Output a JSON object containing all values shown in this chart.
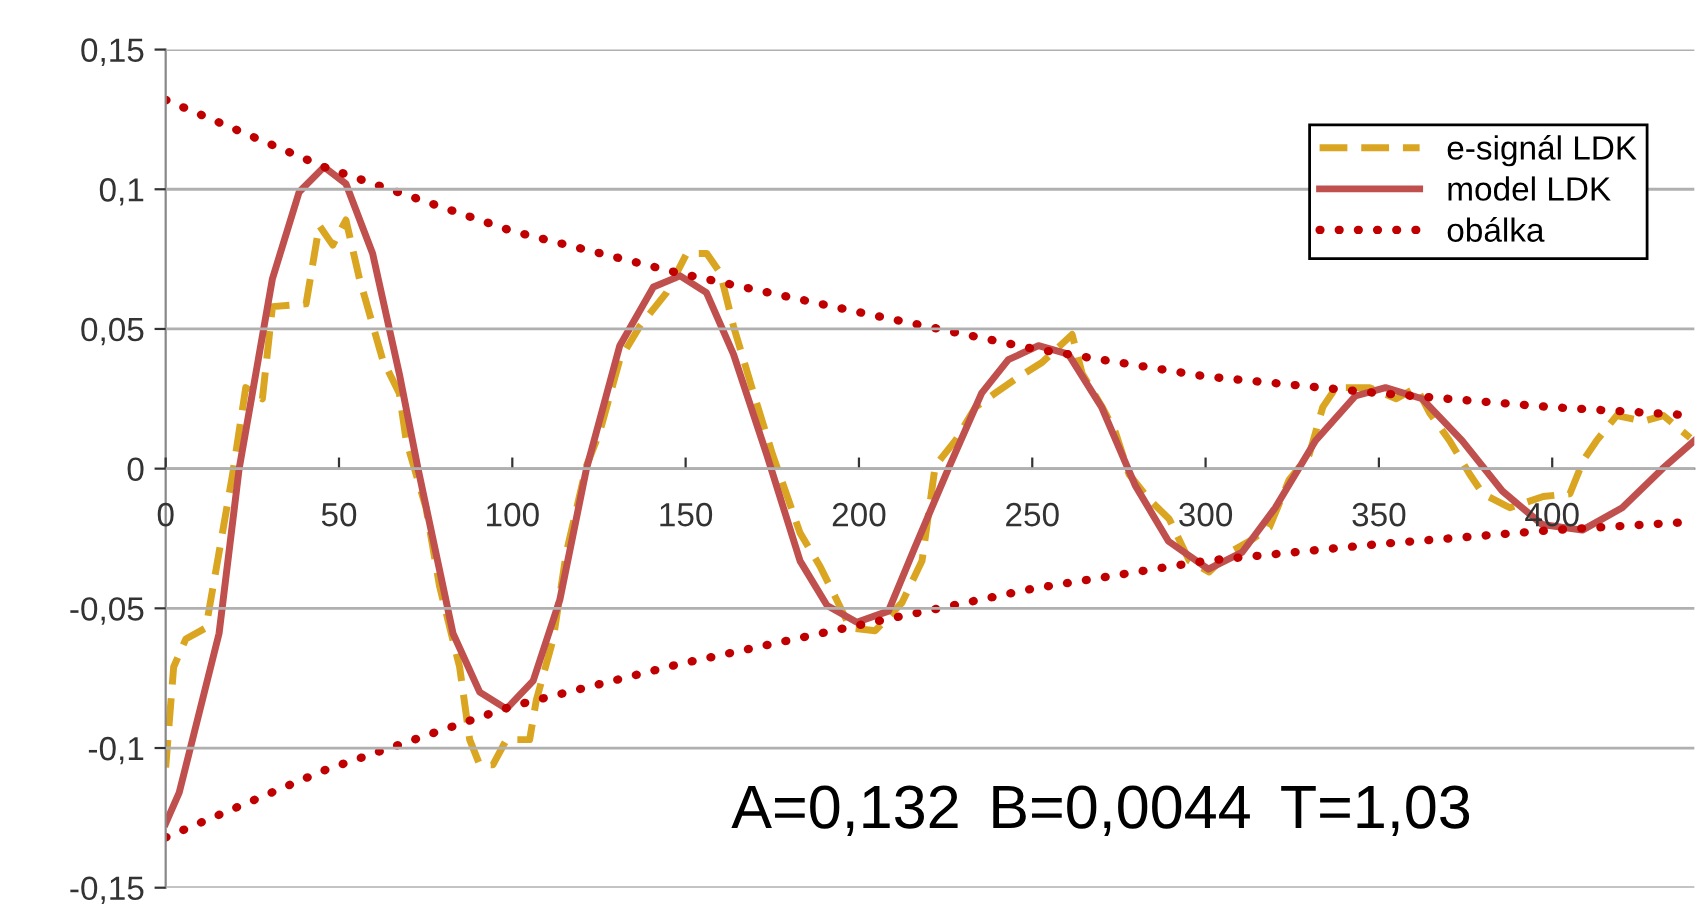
{
  "chart_data": {
    "type": "line",
    "xlim": [
      0,
      441
    ],
    "xticks": [
      0,
      50,
      100,
      150,
      200,
      250,
      300,
      350,
      400
    ],
    "ylim": [
      -0.15,
      0.15
    ],
    "yticks": [
      {
        "value": -0.15,
        "label": "-0,15"
      },
      {
        "value": -0.1,
        "label": "-0,1"
      },
      {
        "value": -0.05,
        "label": "-0,05"
      },
      {
        "value": 0,
        "label": "0"
      },
      {
        "value": 0.05,
        "label": "0,05"
      },
      {
        "value": 0.1,
        "label": "0,1"
      },
      {
        "value": 0.15,
        "label": "0,15"
      }
    ],
    "grid": "y",
    "legend": "top right",
    "marker": "none",
    "annotations": [
      "A=0,132",
      "B=0,0044",
      "T=1,03"
    ],
    "series": [
      {
        "name": "e-signál LDK",
        "color": "#daa520",
        "line_style": "dashed",
        "x": [
          0,
          2.3,
          5.8,
          11.6,
          15.4,
          19.3,
          23.1,
          27.9,
          30.8,
          40.5,
          44.3,
          48.2,
          52,
          55.9,
          62.6,
          67.4,
          69.4,
          75.1,
          79,
          84.8,
          87.7,
          90.6,
          94.4,
          98.3,
          105,
          106.9,
          111.8,
          115.6,
          121.4,
          125.2,
          131,
          136.8,
          144.5,
          150.3,
          156.1,
          160,
          163.8,
          169.6,
          175.1,
          183,
          188.8,
          193.6,
          197.5,
          204.7,
          212.4,
          218.2,
          222,
          227.8,
          233.6,
          239.3,
          245.1,
          252.8,
          261.5,
          264.4,
          270.2,
          274,
          277.9,
          283.7,
          289.5,
          295.3,
          301,
          306.8,
          312.6,
          318.4,
          324.1,
          329.9,
          333.8,
          337.6,
          347.3,
          355,
          360.8,
          364.6,
          370.4,
          376.2,
          380,
          387.8,
          397.4,
          405.1,
          409,
          412.8,
          418.6,
          426.3,
          432.1,
          439.8
        ],
        "values": [
          -0.107,
          -0.071,
          -0.061,
          -0.057,
          -0.03,
          -0.002,
          0.029,
          0.025,
          0.058,
          0.059,
          0.087,
          0.08,
          0.089,
          0.068,
          0.039,
          0.027,
          0.01,
          -0.014,
          -0.042,
          -0.071,
          -0.097,
          -0.106,
          -0.106,
          -0.097,
          -0.097,
          -0.083,
          -0.061,
          -0.03,
          0.001,
          0.013,
          0.039,
          0.051,
          0.063,
          0.077,
          0.077,
          0.07,
          0.051,
          0.027,
          0.005,
          -0.023,
          -0.035,
          -0.047,
          -0.057,
          -0.058,
          -0.048,
          -0.033,
          0.001,
          0.01,
          0.022,
          0.027,
          0.032,
          0.038,
          0.048,
          0.034,
          0.022,
          0.013,
          -0.002,
          -0.011,
          -0.018,
          -0.033,
          -0.037,
          -0.03,
          -0.026,
          -0.021,
          -0.004,
          0.005,
          0.022,
          0.029,
          0.029,
          0.025,
          0.029,
          0.02,
          0.01,
          -0.002,
          -0.009,
          -0.014,
          -0.01,
          -0.009,
          0.003,
          0.01,
          0.019,
          0.017,
          0.019,
          0.011
        ]
      },
      {
        "name": "model LDK",
        "color": "#c0504d",
        "line_style": "solid",
        "x": [
          0,
          3.9,
          15.4,
          21.2,
          30.8,
          38.5,
          45.7,
          52,
          59.7,
          67.4,
          72.8,
          82.9,
          90.6,
          98.3,
          106,
          113.7,
          121.4,
          131,
          140.7,
          148.4,
          156,
          163.8,
          173.4,
          183,
          190.8,
          199.4,
          208.5,
          216.2,
          225.8,
          235.4,
          243.1,
          251.8,
          260.4,
          270,
          279.7,
          289.3,
          300.8,
          310.5,
          320.1,
          331.7,
          343.2,
          351.9,
          362.5,
          374,
          385.6,
          397.1,
          408.7,
          420.2,
          431.8,
          441
        ],
        "values": [
          -0.127,
          -0.116,
          -0.059,
          0,
          0.068,
          0.099,
          0.108,
          0.102,
          0.077,
          0.034,
          0,
          -0.059,
          -0.08,
          -0.086,
          -0.076,
          -0.047,
          0,
          0.044,
          0.065,
          0.069,
          0.063,
          0.041,
          0.005,
          -0.033,
          -0.049,
          -0.055,
          -0.051,
          -0.028,
          0,
          0.027,
          0.039,
          0.044,
          0.041,
          0.022,
          -0.006,
          -0.026,
          -0.036,
          -0.03,
          -0.014,
          0.01,
          0.026,
          0.029,
          0.025,
          0.01,
          -0.008,
          -0.02,
          -0.022,
          -0.014,
          0,
          0.01
        ]
      },
      {
        "name": "obálka",
        "color": "#c00000",
        "line_style": "dotted",
        "x": [
          0,
          45.7,
          100,
          148,
          200,
          250,
          300,
          350,
          400,
          441
        ],
        "values": [
          0.132,
          0.108,
          0.085,
          0.07,
          0.056,
          0.043,
          0.033,
          0.027,
          0.022,
          0.019
        ]
      },
      {
        "color": "#c00000",
        "line_style": "dotted",
        "x": [
          0,
          45.7,
          100,
          148,
          200,
          250,
          300,
          350,
          400,
          441
        ],
        "values": [
          -0.132,
          -0.108,
          -0.085,
          -0.07,
          -0.056,
          -0.043,
          -0.033,
          -0.027,
          -0.022,
          -0.019
        ]
      }
    ]
  }
}
